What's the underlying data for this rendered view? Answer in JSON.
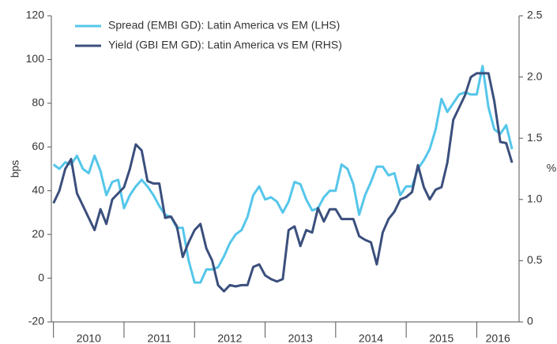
{
  "chart_data": {
    "type": "line",
    "x": [
      2010,
      2010.083,
      2010.167,
      2010.25,
      2010.333,
      2010.417,
      2010.5,
      2010.583,
      2010.667,
      2010.75,
      2010.833,
      2010.917,
      2011,
      2011.083,
      2011.167,
      2011.25,
      2011.333,
      2011.417,
      2011.5,
      2011.583,
      2011.667,
      2011.75,
      2011.833,
      2011.917,
      2012,
      2012.083,
      2012.167,
      2012.25,
      2012.333,
      2012.417,
      2012.5,
      2012.583,
      2012.667,
      2012.75,
      2012.833,
      2012.917,
      2013,
      2013.083,
      2013.167,
      2013.25,
      2013.333,
      2013.417,
      2013.5,
      2013.583,
      2013.667,
      2013.75,
      2013.833,
      2013.917,
      2014,
      2014.083,
      2014.167,
      2014.25,
      2014.333,
      2014.417,
      2014.5,
      2014.583,
      2014.667,
      2014.75,
      2014.833,
      2014.917,
      2015,
      2015.083,
      2015.167,
      2015.25,
      2015.333,
      2015.417,
      2015.5,
      2015.583,
      2015.667,
      2015.75,
      2015.833,
      2015.917,
      2016,
      2016.083,
      2016.167,
      2016.25,
      2016.333,
      2016.417,
      2016.5
    ],
    "series": [
      {
        "name": "Spread (EMBI GD): Latin America vs EM (LHS)",
        "color": "#55c6ea",
        "axis": "y",
        "values": [
          52,
          50,
          53,
          52,
          56,
          50,
          48,
          56,
          49,
          38,
          44,
          45,
          32,
          38,
          42,
          45,
          42,
          38,
          33,
          29,
          28,
          23,
          23,
          8,
          -2,
          -2,
          4,
          4,
          5,
          10,
          16,
          20,
          22,
          28,
          38,
          42,
          36,
          37,
          35,
          30,
          35,
          44,
          43,
          36,
          31,
          32,
          37,
          40,
          40,
          52,
          50,
          43,
          29,
          38,
          44,
          51,
          51,
          47,
          48,
          38,
          42,
          42,
          50,
          54,
          59,
          68,
          82,
          76,
          80,
          84,
          85,
          84,
          84,
          97,
          78,
          68,
          66,
          70,
          59
        ]
      },
      {
        "name": "Yield (GBI EM GD): Latin America vs EM (RHS)",
        "color": "#3b4f7d",
        "axis": "y2",
        "values": [
          0.97,
          1.07,
          1.25,
          1.33,
          1.05,
          0.95,
          0.85,
          0.75,
          0.92,
          0.8,
          1.0,
          1.05,
          1.1,
          1.25,
          1.45,
          1.4,
          1.15,
          1.13,
          1.13,
          0.85,
          0.86,
          0.78,
          0.53,
          0.65,
          0.75,
          0.8,
          0.6,
          0.5,
          0.3,
          0.25,
          0.3,
          0.29,
          0.3,
          0.3,
          0.45,
          0.47,
          0.38,
          0.35,
          0.33,
          0.35,
          0.75,
          0.78,
          0.62,
          0.75,
          0.73,
          0.93,
          0.82,
          0.92,
          0.92,
          0.84,
          0.84,
          0.84,
          0.7,
          0.67,
          0.65,
          0.47,
          0.73,
          0.84,
          0.9,
          1.0,
          1.02,
          1.06,
          1.28,
          1.1,
          1.0,
          1.08,
          1.1,
          1.3,
          1.65,
          1.75,
          1.85,
          2.0,
          2.03,
          2.03,
          2.03,
          1.8,
          1.47,
          1.46,
          1.3
        ]
      }
    ],
    "ylabel": "bps",
    "y2label": "%",
    "xlim": [
      2009.97,
      2016.6
    ],
    "xticks": [
      {
        "value": 2010,
        "label": "2010"
      },
      {
        "value": 2011,
        "label": "2011"
      },
      {
        "value": 2012,
        "label": "2012"
      },
      {
        "value": 2013,
        "label": "2013"
      },
      {
        "value": 2014,
        "label": "2014"
      },
      {
        "value": 2015,
        "label": "2015"
      },
      {
        "value": 2016,
        "label": "2016"
      }
    ],
    "ylim": [
      -20,
      120
    ],
    "yticks": [
      -20,
      0,
      20,
      40,
      60,
      80,
      100,
      120
    ],
    "y2lim": [
      0,
      2.5
    ],
    "y2ticks": [
      0,
      0.5,
      {
        "value": 1,
        "label": "1.0"
      },
      1.5,
      {
        "value": 2,
        "label": "2.0"
      },
      2.5
    ],
    "legend": "upper left",
    "grid": false
  }
}
